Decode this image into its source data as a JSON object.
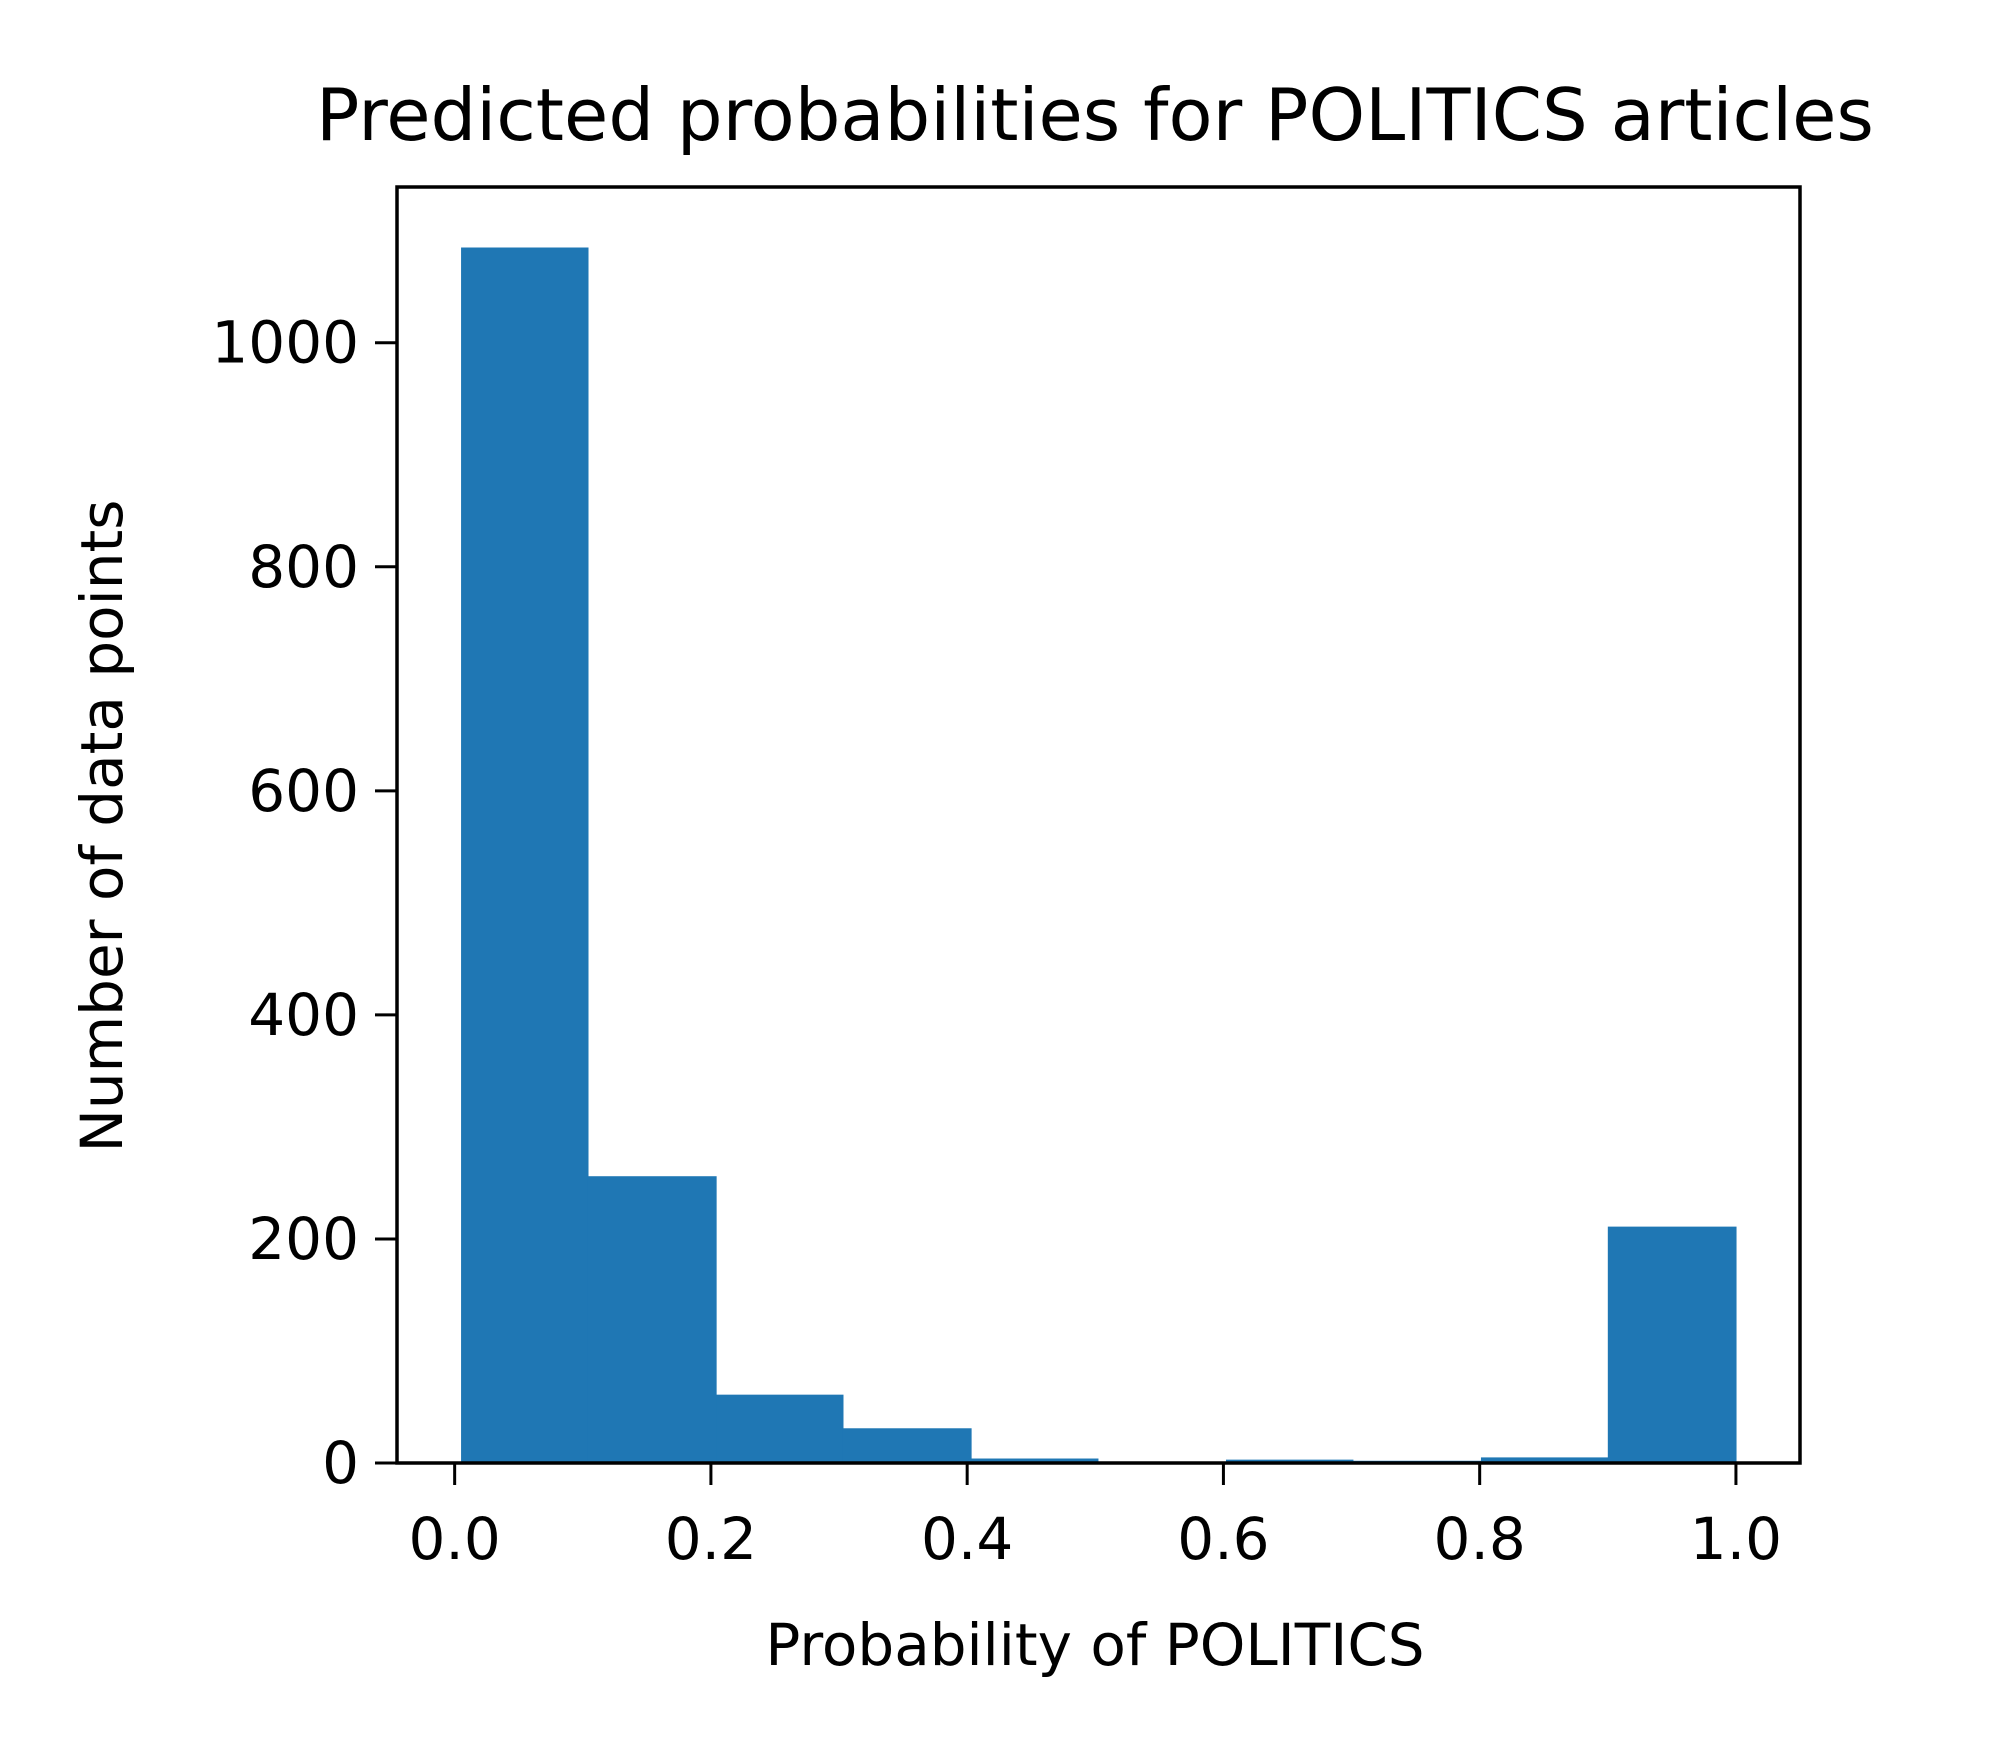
{
  "chart_data": {
    "type": "bar",
    "title": "Predicted probabilities for POLITICS articles",
    "xlabel": "Probability of POLITICS",
    "ylabel": "Number of data points",
    "bins": [
      {
        "x0": 0.005,
        "x1": 0.104,
        "count": 1085
      },
      {
        "x0": 0.104,
        "x1": 0.204,
        "count": 256
      },
      {
        "x0": 0.204,
        "x1": 0.303,
        "count": 61
      },
      {
        "x0": 0.303,
        "x1": 0.403,
        "count": 31
      },
      {
        "x0": 0.403,
        "x1": 0.502,
        "count": 4
      },
      {
        "x0": 0.502,
        "x1": 0.602,
        "count": 0
      },
      {
        "x0": 0.602,
        "x1": 0.701,
        "count": 3
      },
      {
        "x0": 0.701,
        "x1": 0.801,
        "count": 2
      },
      {
        "x0": 0.801,
        "x1": 0.9,
        "count": 5
      },
      {
        "x0": 0.9,
        "x1": 1.0,
        "count": 211
      }
    ],
    "xlim": [
      -0.045,
      1.05
    ],
    "ylim": [
      0,
      1139
    ],
    "xticks": [
      0.0,
      0.2,
      0.4,
      0.6,
      0.8,
      1.0
    ],
    "xtick_labels": [
      "0.0",
      "0.2",
      "0.4",
      "0.6",
      "0.8",
      "1.0"
    ],
    "yticks": [
      0,
      200,
      400,
      600,
      800,
      1000
    ],
    "ytick_labels": [
      "0",
      "200",
      "400",
      "600",
      "800",
      "1000"
    ],
    "bar_color": "#1f77b4",
    "grid": false,
    "legend": "none"
  }
}
